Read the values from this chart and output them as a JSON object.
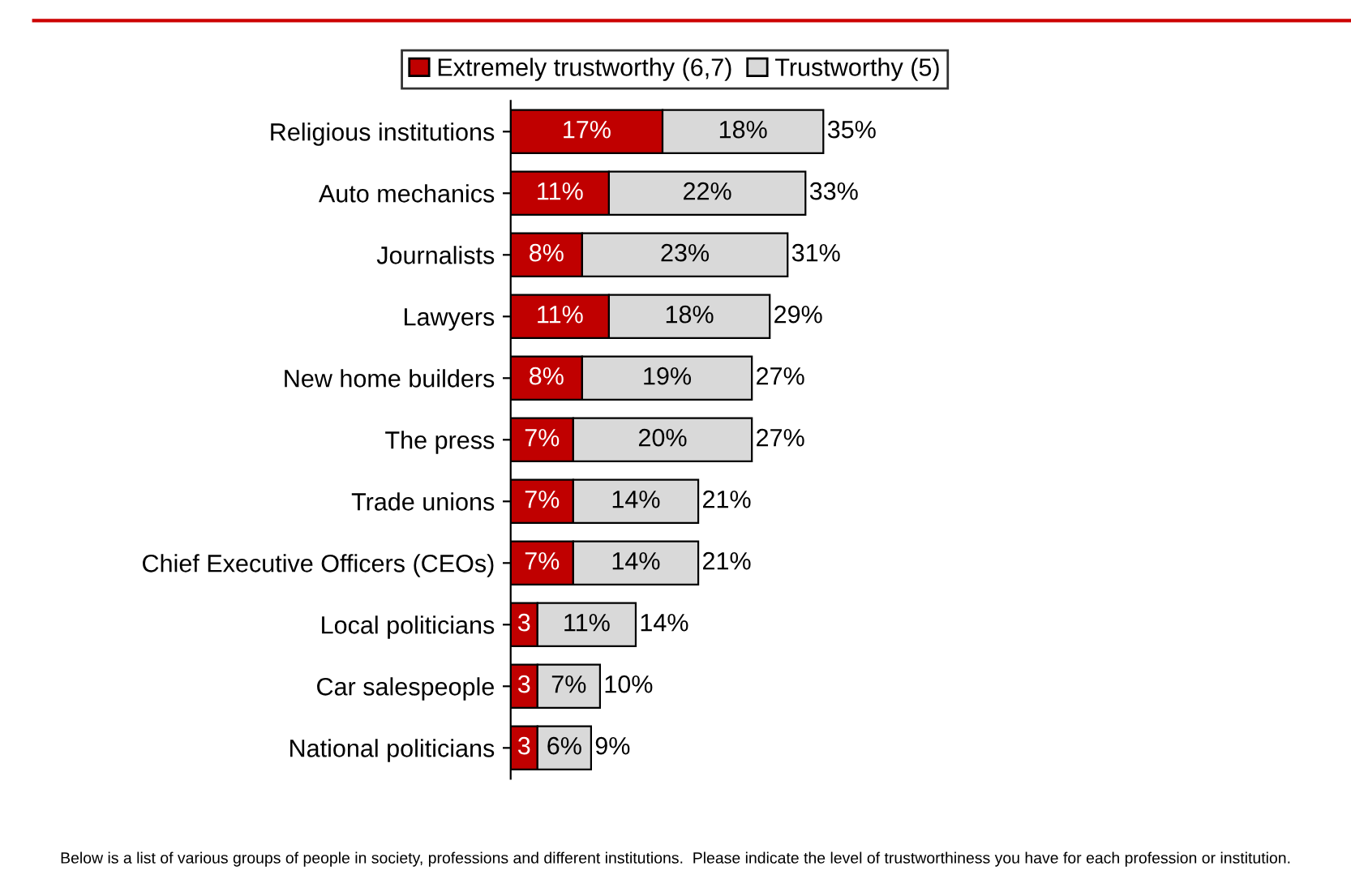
{
  "chart_data": {
    "type": "bar",
    "orientation": "horizontal",
    "stacked": true,
    "categories": [
      "Religious institutions",
      "Auto mechanics",
      "Journalists",
      "Lawyers",
      "New home builders",
      "The press",
      "Trade unions",
      "Chief Executive Officers (CEOs)",
      "Local politicians",
      "Car salespeople",
      "National politicians"
    ],
    "series": [
      {
        "name": "Extremely trustworthy (6,7)",
        "color": "#c00000",
        "values": [
          17,
          11,
          8,
          11,
          8,
          7,
          7,
          7,
          3,
          3,
          3
        ],
        "value_labels": [
          "17%",
          "11%",
          "8%",
          "11%",
          "8%",
          "7%",
          "7%",
          "7%",
          "3",
          "3",
          "3"
        ]
      },
      {
        "name": "Trustworthy (5)",
        "color": "#d9d9d9",
        "values": [
          18,
          22,
          23,
          18,
          19,
          20,
          14,
          14,
          11,
          7,
          6
        ],
        "value_labels": [
          "18%",
          "22%",
          "23%",
          "18%",
          "19%",
          "20%",
          "14%",
          "14%",
          "11%",
          "7%",
          "6%"
        ]
      }
    ],
    "totals": [
      "35%",
      "33%",
      "31%",
      "29%",
      "27%",
      "27%",
      "21%",
      "21%",
      "14%",
      "10%",
      "9%"
    ],
    "tick_labels": "y",
    "grid": false,
    "legend": "top",
    "annotations": [
      "Below is a list of various groups of people in society, professions and different institutions.  Please indicate the level of trustworthiness you have for each profession or institution."
    ]
  }
}
